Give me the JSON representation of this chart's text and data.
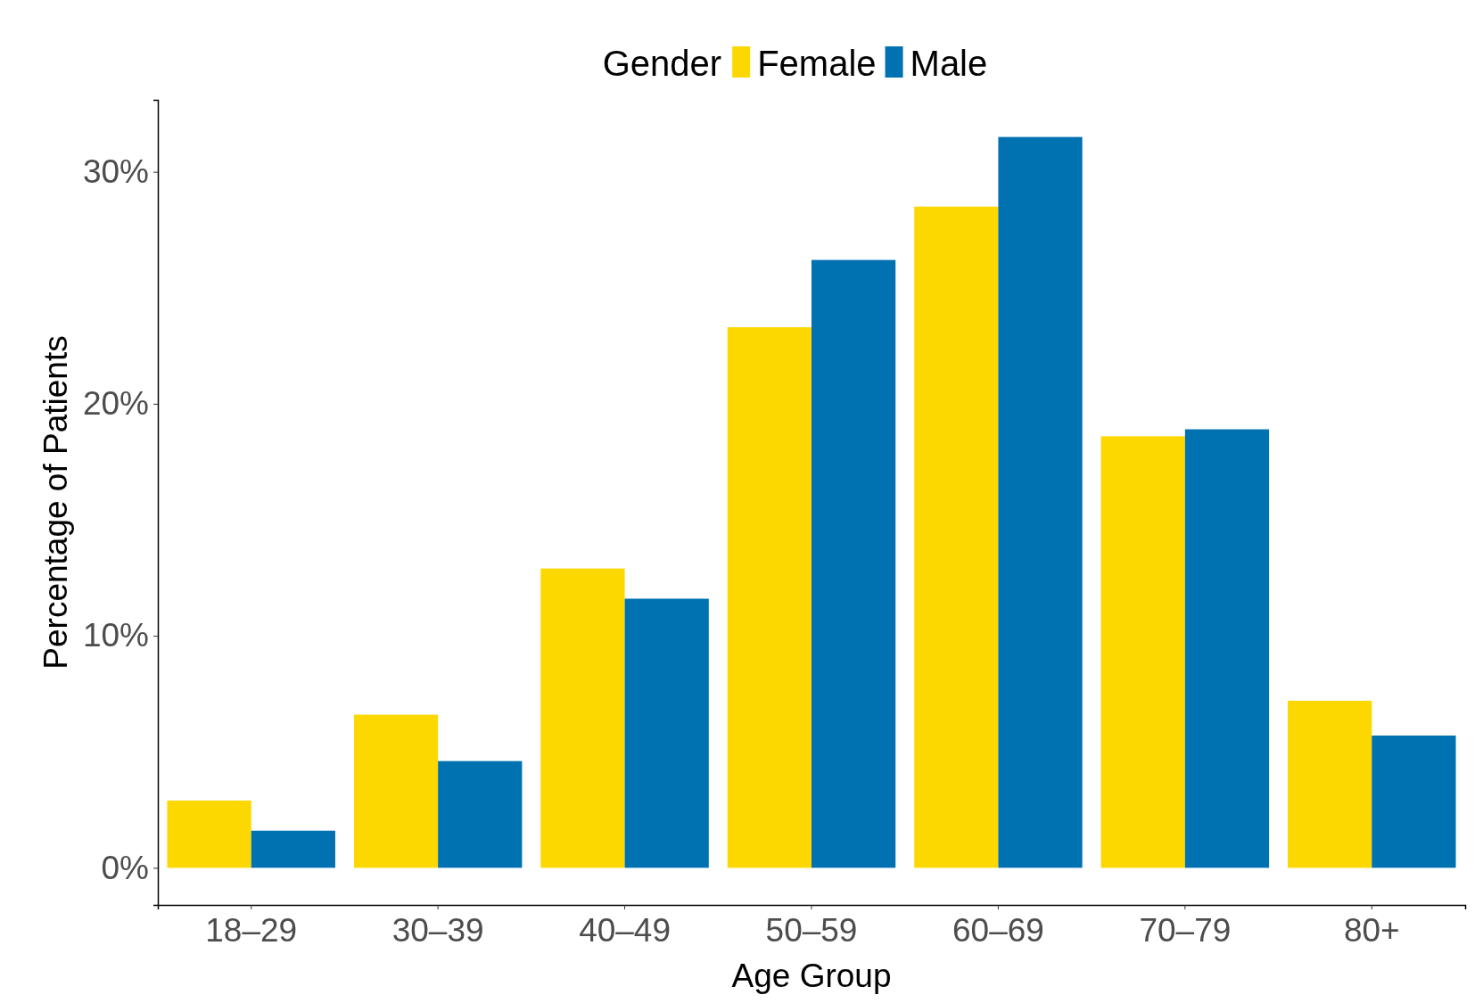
{
  "chart_data": {
    "type": "bar",
    "xlabel": "Age Group",
    "ylabel": "Percentage of Patients",
    "legend_title": "Gender",
    "legend": "top",
    "grid": false,
    "categories": [
      "18–29",
      "30–39",
      "40–49",
      "50–59",
      "60–69",
      "70–79",
      "80+"
    ],
    "series": [
      {
        "name": "Female",
        "color": "#fdd800",
        "values": [
          2.9,
          6.6,
          12.9,
          23.3,
          28.5,
          18.6,
          7.2
        ]
      },
      {
        "name": "Male",
        "color": "#0072b2",
        "values": [
          1.6,
          4.6,
          11.6,
          26.2,
          31.5,
          18.9,
          5.7
        ]
      }
    ],
    "ylim": [
      -1.6,
      33.1
    ],
    "yticks": [
      {
        "value": 0,
        "label": "0%"
      },
      {
        "value": 10,
        "label": "10%"
      },
      {
        "value": 20,
        "label": "20%"
      },
      {
        "value": 30,
        "label": "30%"
      }
    ]
  }
}
